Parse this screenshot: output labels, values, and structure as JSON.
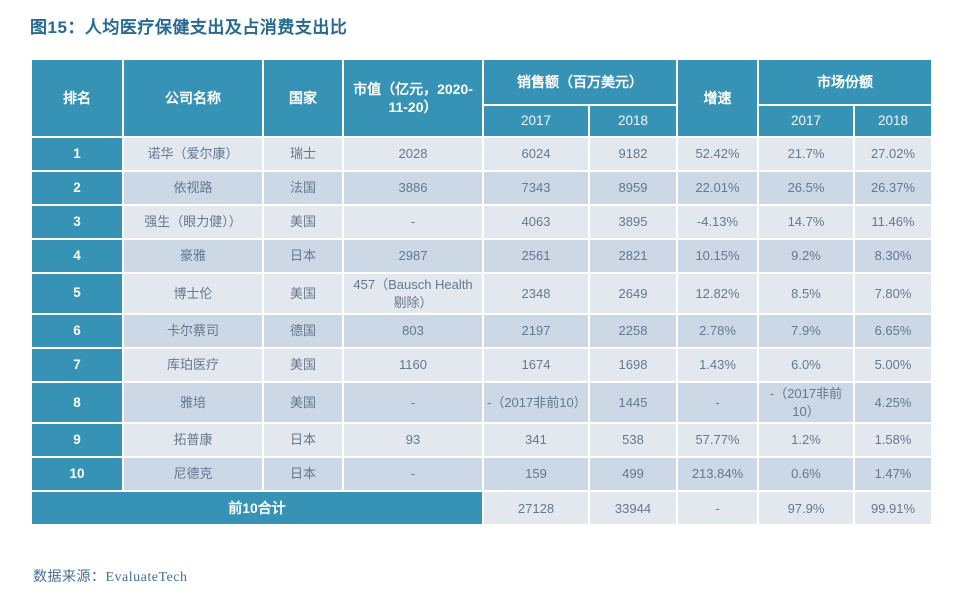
{
  "page": {
    "title": "图15：人均医疗保健支出及占消费支出比",
    "source": "数据来源：EvaluateTech"
  },
  "colors": {
    "header_teal": "#3793b5",
    "row_light": "#e3e8ef",
    "row_dark": "#ccd8e6",
    "title_blue": "#266a94",
    "cell_text": "#64788f",
    "source_text": "#41709b"
  },
  "chart_data": {
    "type": "table",
    "title": "图15：人均医疗保健支出及占消费支出比",
    "headers": {
      "rank": "排名",
      "company": "公司名称",
      "country": "国家",
      "market_cap": "市值（亿元，2020-11-20）",
      "sales_group": "销售额（百万美元）",
      "growth": "增速",
      "share_group": "市场份额",
      "sales_2017": "2017",
      "sales_2018": "2018",
      "share_2017": "2017",
      "share_2018": "2018"
    },
    "rows": [
      {
        "rank": "1",
        "company": "诺华（爱尔康）",
        "country": "瑞士",
        "market_cap": "2028",
        "sales_2017": "6024",
        "sales_2018": "9182",
        "growth": "52.42%",
        "share_2017": "21.7%",
        "share_2018": "27.02%"
      },
      {
        "rank": "2",
        "company": "依视路",
        "country": "法国",
        "market_cap": "3886",
        "sales_2017": "7343",
        "sales_2018": "8959",
        "growth": "22.01%",
        "share_2017": "26.5%",
        "share_2018": "26.37%"
      },
      {
        "rank": "3",
        "company": "强生（眼力健））",
        "country": "美国",
        "market_cap": "-",
        "sales_2017": "4063",
        "sales_2018": "3895",
        "growth": "-4.13%",
        "share_2017": "14.7%",
        "share_2018": "11.46%"
      },
      {
        "rank": "4",
        "company": "豪雅",
        "country": "日本",
        "market_cap": "2987",
        "sales_2017": "2561",
        "sales_2018": "2821",
        "growth": "10.15%",
        "share_2017": "9.2%",
        "share_2018": "8.30%"
      },
      {
        "rank": "5",
        "company": "博士伦",
        "country": "美国",
        "market_cap": "457（Bausch Health剔除）",
        "sales_2017": "2348",
        "sales_2018": "2649",
        "growth": "12.82%",
        "share_2017": "8.5%",
        "share_2018": "7.80%"
      },
      {
        "rank": "6",
        "company": "卡尔蔡司",
        "country": "德国",
        "market_cap": "803",
        "sales_2017": "2197",
        "sales_2018": "2258",
        "growth": "2.78%",
        "share_2017": "7.9%",
        "share_2018": "6.65%"
      },
      {
        "rank": "7",
        "company": "库珀医疗",
        "country": "美国",
        "market_cap": "1160",
        "sales_2017": "1674",
        "sales_2018": "1698",
        "growth": "1.43%",
        "share_2017": "6.0%",
        "share_2018": "5.00%"
      },
      {
        "rank": "8",
        "company": "雅培",
        "country": "美国",
        "market_cap": "-",
        "sales_2017": "-（2017非前10）",
        "sales_2018": "1445",
        "growth": "-",
        "share_2017": "-（2017非前10）",
        "share_2018": "4.25%"
      },
      {
        "rank": "9",
        "company": "拓普康",
        "country": "日本",
        "market_cap": "93",
        "sales_2017": "341",
        "sales_2018": "538",
        "growth": "57.77%",
        "share_2017": "1.2%",
        "share_2018": "1.58%"
      },
      {
        "rank": "10",
        "company": "尼德克",
        "country": "日本",
        "market_cap": "-",
        "sales_2017": "159",
        "sales_2018": "499",
        "growth": "213.84%",
        "share_2017": "0.6%",
        "share_2018": "1.47%"
      }
    ],
    "total_row": {
      "label": "前10合计",
      "sales_2017": "27128",
      "sales_2018": "33944",
      "growth": "-",
      "share_2017": "97.9%",
      "share_2018": "99.91%"
    }
  }
}
